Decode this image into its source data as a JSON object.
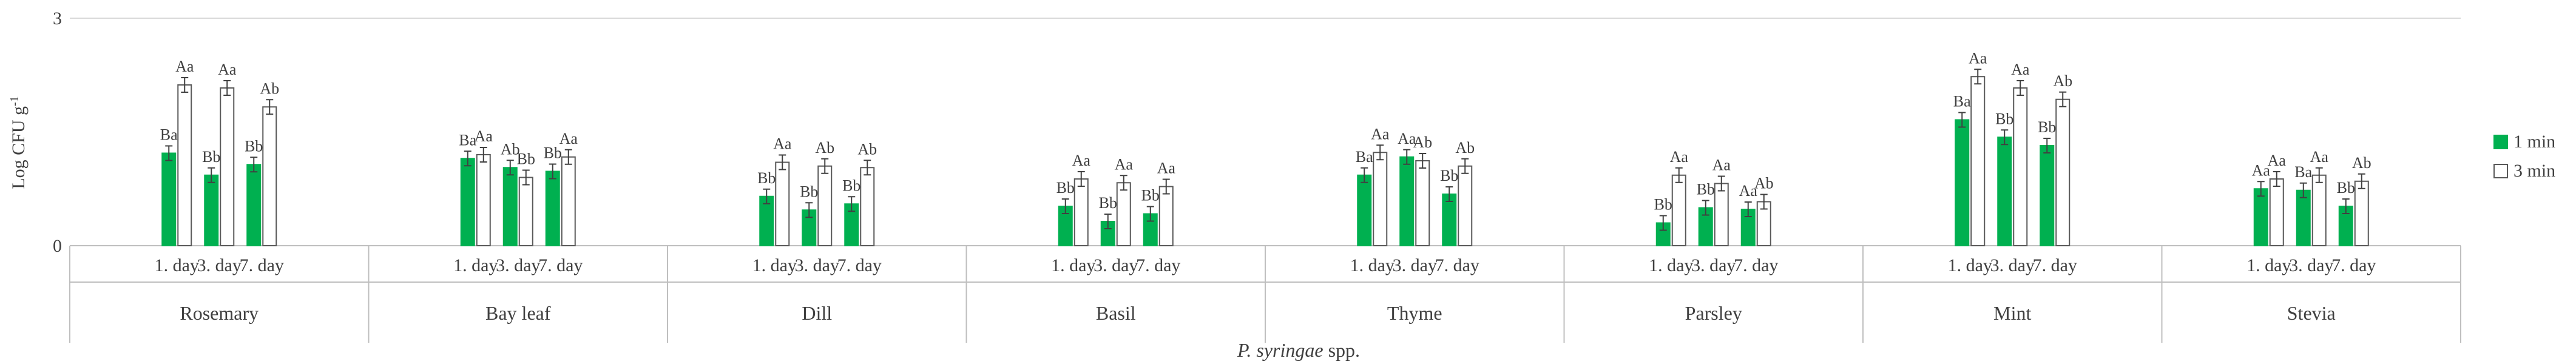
{
  "chart_data": {
    "type": "bar",
    "title": "",
    "ylabel": "Log CFU g",
    "ylabel_superscript": "-1",
    "xlabel": "P. syringae",
    "xlabel_suffix": " spp.",
    "ylim": [
      0,
      3
    ],
    "yticks": [
      "0",
      "3"
    ],
    "grid": true,
    "legend_position": "right",
    "groups": [
      "Rosemary",
      "Bay leaf",
      "Dill",
      "Basil",
      "Thyme",
      "Parsley",
      "Mint",
      "Stevia"
    ],
    "days": [
      "1. day",
      "3. day",
      "7. day"
    ],
    "series": [
      {
        "name": "1 min",
        "color": "#00b050",
        "values": [
          [
            1.22,
            0.93,
            1.07
          ],
          [
            1.15,
            1.03,
            0.98
          ],
          [
            0.65,
            0.47,
            0.55
          ],
          [
            0.52,
            0.32,
            0.42
          ],
          [
            0.93,
            1.17,
            0.68
          ],
          [
            0.3,
            0.5,
            0.48
          ],
          [
            1.66,
            1.43,
            1.32
          ],
          [
            0.75,
            0.73,
            0.52
          ]
        ],
        "labels": [
          [
            "Ba",
            "Bb",
            "Bb"
          ],
          [
            "Ba",
            "Ab",
            "Bb"
          ],
          [
            "Bb",
            "Bb",
            "Bb"
          ],
          [
            "Bb",
            "Bb",
            "Bb"
          ],
          [
            "Ba",
            "Aa",
            "Bb"
          ],
          [
            "Bb",
            "Bb",
            "Aa"
          ],
          [
            "Ba",
            "Bb",
            "Bb"
          ],
          [
            "Aa",
            "Ba",
            "Bb"
          ]
        ]
      },
      {
        "name": "3 min",
        "color": "#ffffff",
        "values": [
          [
            2.12,
            2.08,
            1.83
          ],
          [
            1.2,
            0.9,
            1.17
          ],
          [
            1.1,
            1.05,
            1.03
          ],
          [
            0.88,
            0.83,
            0.78
          ],
          [
            1.23,
            1.12,
            1.05
          ],
          [
            0.93,
            0.82,
            0.58
          ],
          [
            2.23,
            2.08,
            1.93
          ],
          [
            0.88,
            0.93,
            0.85
          ]
        ],
        "labels": [
          [
            "Aa",
            "Aa",
            "Ab"
          ],
          [
            "Aa",
            "Bb",
            "Aa"
          ],
          [
            "Aa",
            "Ab",
            "Ab"
          ],
          [
            "Aa",
            "Aa",
            "Aa"
          ],
          [
            "Aa",
            "Ab",
            "Ab"
          ],
          [
            "Aa",
            "Aa",
            "Ab"
          ],
          [
            "Aa",
            "Aa",
            "Ab"
          ],
          [
            "Aa",
            "Aa",
            "Ab"
          ]
        ]
      }
    ]
  }
}
